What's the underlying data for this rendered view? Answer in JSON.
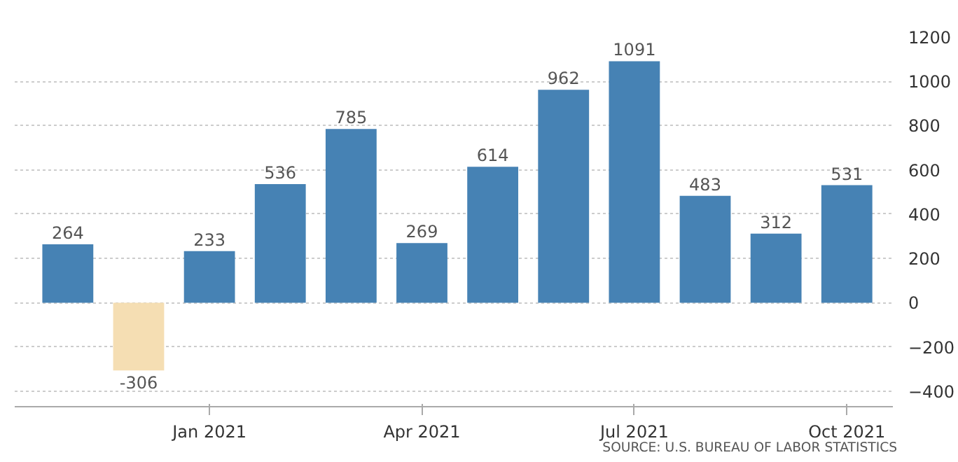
{
  "chart_data": {
    "type": "bar",
    "categories": [
      null,
      null,
      "Jan 2021",
      null,
      null,
      "Apr 2021",
      null,
      null,
      "Jul 2021",
      null,
      null,
      "Oct 2021"
    ],
    "values": [
      264,
      -306,
      233,
      536,
      785,
      269,
      614,
      962,
      1091,
      483,
      312,
      531
    ],
    "colors": [
      "#4682b4",
      "#f5deb3",
      "#4682b4",
      "#4682b4",
      "#4682b4",
      "#4682b4",
      "#4682b4",
      "#4682b4",
      "#4682b4",
      "#4682b4",
      "#4682b4",
      "#4682b4"
    ],
    "ylim": [
      -470,
      1200
    ],
    "yticks": [
      -400,
      -200,
      0,
      200,
      400,
      600,
      800,
      1000,
      1200
    ],
    "grid": "y",
    "data_labels": true,
    "annotations": [
      "SOURCE: U.S. BUREAU OF LABOR STATISTICS"
    ]
  }
}
